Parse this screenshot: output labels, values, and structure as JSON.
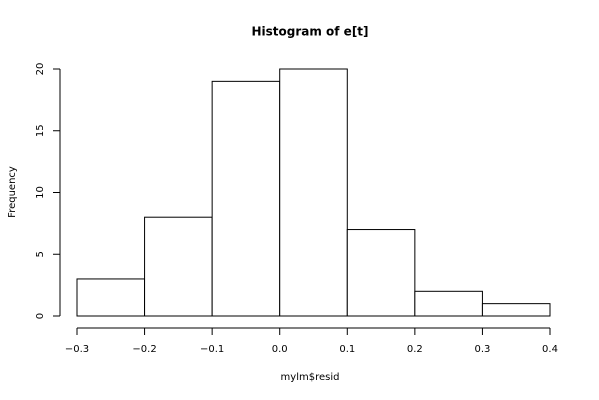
{
  "chart_data": {
    "type": "histogram",
    "title": "Histogram of e[t]",
    "x_label": "mylm$resid",
    "y_label": "Frequency",
    "bins": [
      -0.3,
      -0.2,
      -0.1,
      0,
      0.1,
      0.2,
      0.3,
      0.4
    ],
    "values": [
      3,
      8,
      19,
      20,
      7,
      2,
      1
    ],
    "color": "#ffffff",
    "xlim": [
      -0.3,
      0.4
    ],
    "xticks": [
      {
        "value": -0.3,
        "label": "−0.3"
      },
      {
        "value": -0.2,
        "label": "−0.2"
      },
      {
        "value": -0.1,
        "label": "−0.1"
      },
      {
        "value": 0,
        "label": "0.0"
      },
      0.1,
      0.2,
      0.3,
      0.4
    ],
    "ylim": [
      0,
      20
    ],
    "yticks": [
      0,
      5,
      10,
      15,
      20
    ]
  }
}
